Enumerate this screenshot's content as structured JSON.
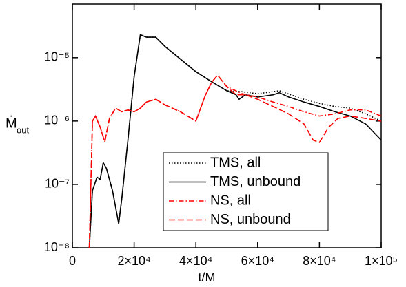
{
  "chart_data": {
    "type": "line",
    "xlabel": "t/M",
    "ylabel": "Ṁ",
    "ylabel_sub": "out",
    "ylog": true,
    "xlim": [
      0,
      100000
    ],
    "ylim": [
      1e-08,
      7e-05
    ],
    "xticks": [
      {
        "value": 0,
        "label": "0"
      },
      {
        "value": 20000,
        "label": "2×10⁴"
      },
      {
        "value": 40000,
        "label": "4×10⁴"
      },
      {
        "value": 60000,
        "label": "6×10⁴"
      },
      {
        "value": 80000,
        "label": "8×10⁴"
      },
      {
        "value": 100000,
        "label": "1×10⁵"
      }
    ],
    "yticks": [
      {
        "value": 1e-08,
        "label": "10⁻⁸"
      },
      {
        "value": 1e-07,
        "label": "10⁻⁷"
      },
      {
        "value": 1e-06,
        "label": "10⁻⁶"
      },
      {
        "value": 1e-05,
        "label": "10⁻⁵"
      }
    ],
    "legend": "lower-right",
    "series": [
      {
        "name": "TMS, all",
        "color": "#000000",
        "dash": "dotted",
        "x": [
          5500,
          6500,
          8000,
          9000,
          10000,
          11000,
          13000,
          15000,
          16000,
          18000,
          20000,
          22000,
          24000,
          27000,
          30000,
          35000,
          40000,
          45000,
          50000,
          55000,
          60000,
          67000,
          75000,
          80000,
          85000,
          90000,
          95000,
          100000
        ],
        "values": [
          1e-08,
          8e-08,
          1.3e-07,
          1.2e-07,
          2.2e-07,
          1.8e-07,
          8e-08,
          2.4e-08,
          6e-08,
          5e-07,
          5e-06,
          2.3e-05,
          2.1e-05,
          2.1e-05,
          1.5e-05,
          9.5e-06,
          6e-06,
          4.2e-06,
          3e-06,
          2.9e-06,
          2.7e-06,
          3e-06,
          2.2e-06,
          1.9e-06,
          1.7e-06,
          1.6e-06,
          1.3e-06,
          1e-06
        ]
      },
      {
        "name": "TMS, unbound",
        "color": "#000000",
        "dash": "solid",
        "x": [
          5500,
          6500,
          8000,
          9000,
          10000,
          11000,
          13000,
          15000,
          16000,
          18000,
          20000,
          22000,
          24000,
          27000,
          30000,
          35000,
          40000,
          45000,
          50000,
          53000,
          54000,
          56000,
          60000,
          65000,
          67000,
          70000,
          75000,
          80000,
          85000,
          90000,
          95000,
          100000
        ],
        "values": [
          1e-08,
          8e-08,
          1.3e-07,
          1.2e-07,
          2.2e-07,
          1.8e-07,
          8e-08,
          2.4e-08,
          6e-08,
          5e-07,
          5e-06,
          2.3e-05,
          2.1e-05,
          2.1e-05,
          1.5e-05,
          9.5e-06,
          6e-06,
          4.2e-06,
          3e-06,
          2.6e-06,
          2.2e-06,
          2.6e-06,
          2.4e-06,
          2.6e-06,
          2.8e-06,
          2.4e-06,
          2e-06,
          1.7e-06,
          1.4e-06,
          1.2e-06,
          9e-07,
          5e-07
        ]
      },
      {
        "name": "NS, all",
        "color": "#ff0000",
        "dash": "dashdot",
        "x": [
          5500,
          6500,
          7500,
          9000,
          10500,
          12000,
          14000,
          16000,
          18000,
          20000,
          22000,
          24000,
          27000,
          30000,
          35000,
          40000,
          43000,
          45000,
          47000,
          50000,
          55000,
          60000,
          65000,
          70000,
          75000,
          80000,
          85000,
          90000,
          95000,
          100000
        ],
        "values": [
          1e-08,
          1e-06,
          1.2e-06,
          8e-07,
          4.7e-07,
          1.1e-06,
          1.6e-06,
          1.4e-06,
          1.5e-06,
          1.4e-06,
          1.6e-06,
          2e-06,
          2.2e-06,
          1.8e-06,
          1.4e-06,
          1e-06,
          2.5e-06,
          4e-06,
          5.3e-06,
          3.5e-06,
          2.7e-06,
          2.4e-06,
          2e-06,
          1.7e-06,
          1.4e-06,
          1.2e-06,
          1.3e-06,
          1.5e-06,
          1.5e-06,
          1.2e-06
        ]
      },
      {
        "name": "NS, unbound",
        "color": "#ff0000",
        "dash": "dashed",
        "x": [
          5500,
          6500,
          7500,
          9000,
          10500,
          12000,
          14000,
          16000,
          18000,
          20000,
          22000,
          24000,
          27000,
          30000,
          35000,
          40000,
          43000,
          45000,
          47000,
          50000,
          53000,
          56000,
          60000,
          65000,
          70000,
          75000,
          78000,
          80000,
          83000,
          86000,
          90000,
          95000,
          100000
        ],
        "values": [
          1e-08,
          1e-06,
          1.2e-06,
          8e-07,
          4.7e-07,
          1.1e-06,
          1.6e-06,
          1.4e-06,
          1.5e-06,
          1.4e-06,
          1.6e-06,
          2e-06,
          2.2e-06,
          1.8e-06,
          1.4e-06,
          1e-06,
          2.5e-06,
          4e-06,
          5.3e-06,
          3.5e-06,
          2.6e-06,
          2.6e-06,
          2.2e-06,
          1.7e-06,
          1.3e-06,
          9e-07,
          5e-07,
          4.6e-07,
          8e-07,
          1.1e-06,
          1.2e-06,
          1.1e-06,
          1e-06
        ]
      }
    ]
  }
}
